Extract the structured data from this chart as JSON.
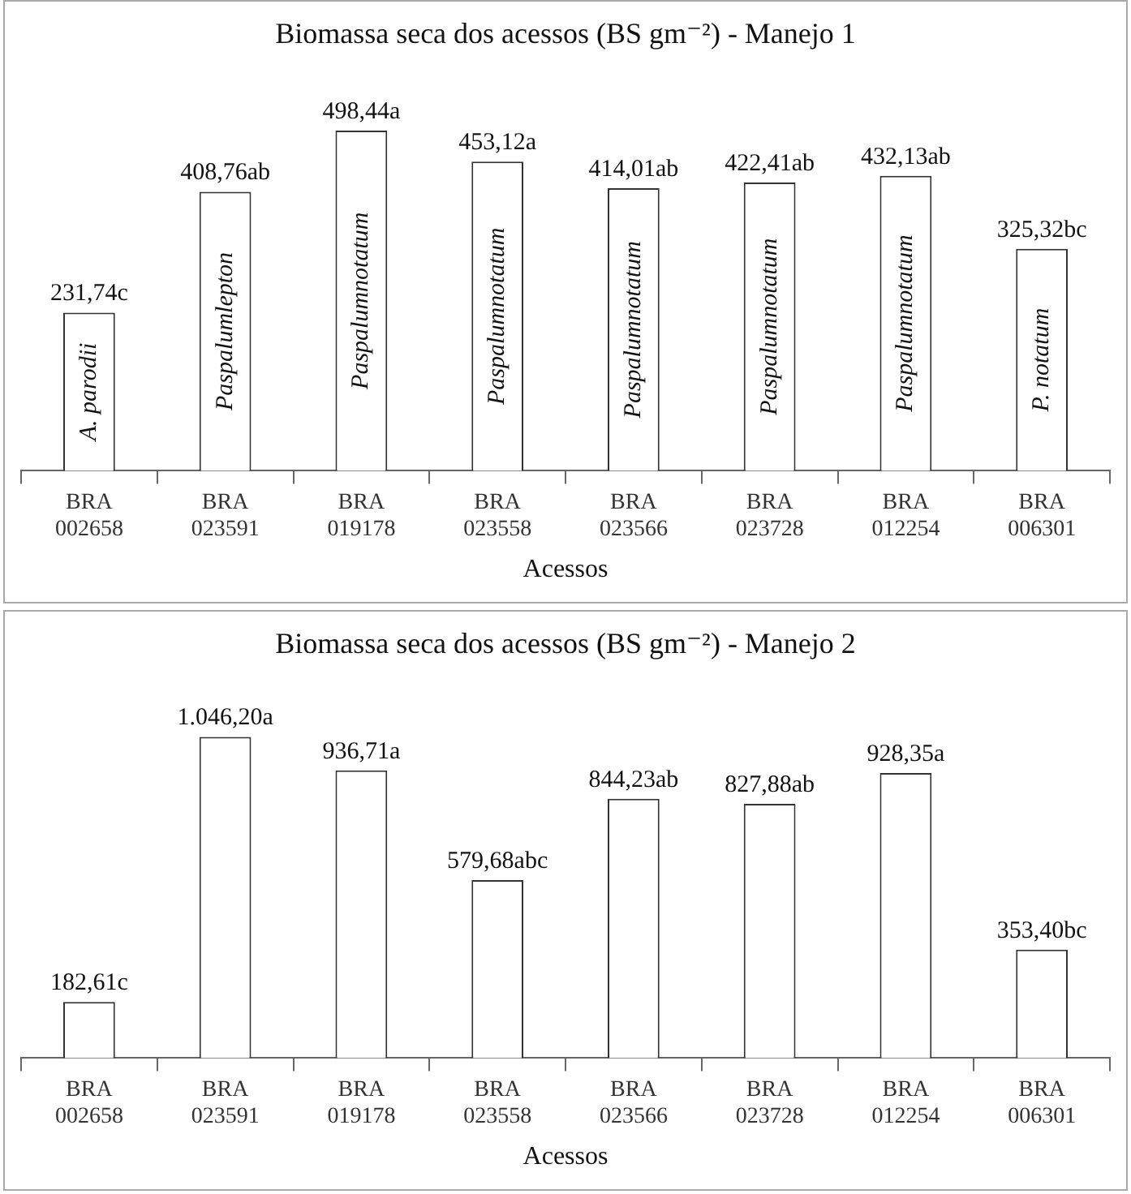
{
  "chart_data": [
    {
      "type": "bar",
      "title": "Biomassa seca dos acessos (BS gm⁻²) - Manejo 1",
      "xlabel": "Acessos",
      "categories": [
        "BRA 002658",
        "BRA 023591",
        "BRA 019178",
        "BRA 023558",
        "BRA 023566",
        "BRA 023728",
        "BRA 012254",
        "BRA 006301"
      ],
      "values": [
        231.74,
        408.76,
        498.44,
        453.12,
        414.01,
        422.41,
        432.13,
        325.32
      ],
      "value_labels": [
        "231,74c",
        "408,76ab",
        "498,44a",
        "453,12a",
        "414,01ab",
        "422,41ab",
        "432,13ab",
        "325,32bc"
      ],
      "color": "#ffffff",
      "annotations": [
        "A. parodii",
        "Paspalumlepton",
        "Paspalumnotatum",
        "Paspalumnotatum",
        "Paspalumnotatum",
        "Paspalumnotatum",
        "Paspalumnotatum",
        "P. notatum"
      ]
    },
    {
      "type": "bar",
      "title": "Biomassa seca dos acessos (BS gm⁻²) - Manejo 2",
      "xlabel": "Acessos",
      "categories": [
        "BRA 002658",
        "BRA 023591",
        "BRA 019178",
        "BRA 023558",
        "BRA 023566",
        "BRA 023728",
        "BRA 012254",
        "BRA 006301"
      ],
      "values": [
        182.61,
        1046.2,
        936.71,
        579.68,
        844.23,
        827.88,
        928.35,
        353.4
      ],
      "value_labels": [
        "182,61c",
        "1.046,20a",
        "936,71a",
        "579,68abc",
        "844,23ab",
        "827,88ab",
        "928,35a",
        "353,40bc"
      ],
      "color": "#ffffff"
    }
  ]
}
